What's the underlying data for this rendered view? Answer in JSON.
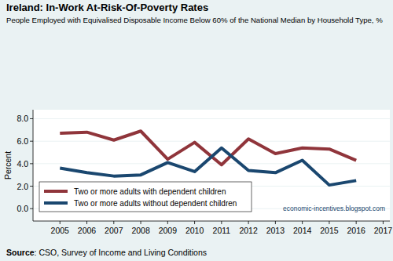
{
  "chart_data": {
    "type": "line",
    "title": "Ireland: In-Work At-Risk-Of-Poverty Rates",
    "subtitle": "People Employed with Equivalised Disposable Income Below 60% of the National Median by Household Type, %",
    "ylabel": "Percent",
    "source": "Source: CSO, Survey of Income and Living Conditions",
    "annotations": [
      "economic-incentives.blogspot.com"
    ],
    "x": [
      2005,
      2006,
      2007,
      2008,
      2009,
      2010,
      2011,
      2012,
      2013,
      2014,
      2015,
      2016
    ],
    "series": [
      {
        "name": "Two or more adults with dependent children",
        "color": "#90353b",
        "values": [
          6.7,
          6.8,
          6.1,
          6.9,
          4.4,
          5.9,
          3.9,
          6.2,
          4.9,
          5.4,
          5.3,
          4.3
        ]
      },
      {
        "name": "Two or more adults without dependent children",
        "color": "#1a476f",
        "values": [
          3.6,
          3.2,
          2.9,
          3.0,
          4.1,
          3.3,
          5.4,
          3.4,
          3.2,
          4.3,
          2.1,
          2.5
        ]
      }
    ],
    "xlim": [
      2004,
      2017.25
    ],
    "xticks": [
      2005,
      2006,
      2007,
      2008,
      2009,
      2010,
      2011,
      2012,
      2013,
      2014,
      2015,
      2016,
      2017
    ],
    "ylim": [
      -1.1,
      8.8
    ],
    "yticks": [
      {
        "value": 0,
        "label": "0.0"
      },
      {
        "value": 2,
        "label": "2.0"
      },
      {
        "value": 4,
        "label": "4.0"
      },
      {
        "value": 6,
        "label": "6.0"
      },
      {
        "value": 8,
        "label": "8.0"
      }
    ],
    "grid": true,
    "legend": "lower left"
  }
}
